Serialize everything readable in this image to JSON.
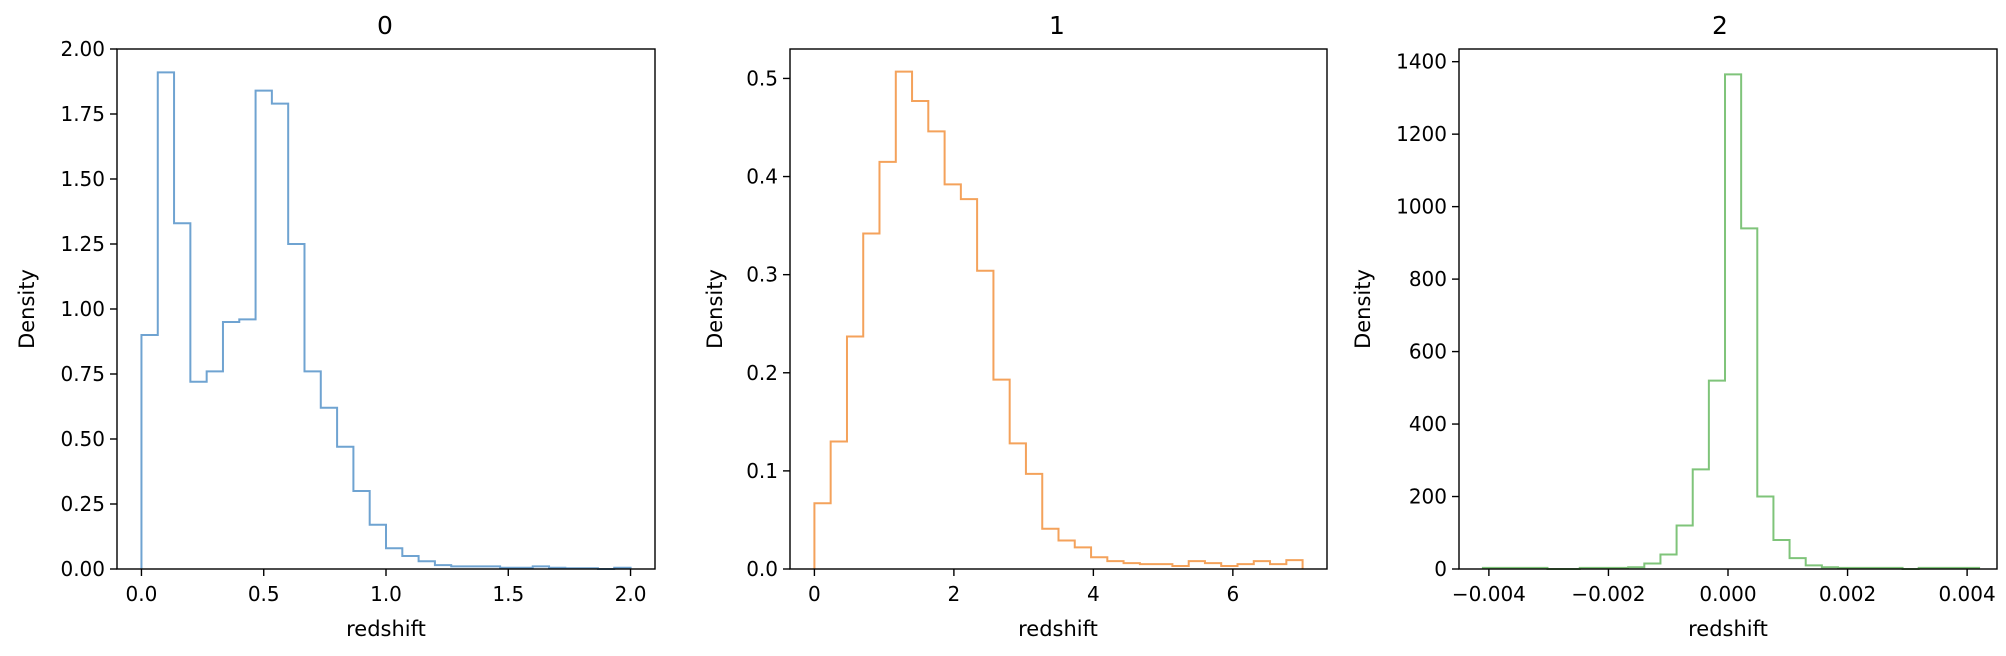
{
  "chart_data": [
    {
      "type": "histogram",
      "histtype": "step",
      "title": "0",
      "xlabel": "redshift",
      "ylabel": "Density",
      "color": "#6fa3d1",
      "xlim": [
        -0.1,
        2.1
      ],
      "ylim": [
        0,
        2.0
      ],
      "xticks": [
        0.0,
        0.5,
        1.0,
        1.5,
        2.0
      ],
      "xtick_labels": [
        "0.0",
        "0.5",
        "1.0",
        "1.5",
        "2.0"
      ],
      "yticks": [
        0.0,
        0.25,
        0.5,
        0.75,
        1.0,
        1.25,
        1.5,
        1.75,
        2.0
      ],
      "ytick_labels": [
        "0.00",
        "0.25",
        "0.50",
        "0.75",
        "1.00",
        "1.25",
        "1.50",
        "1.75",
        "2.00"
      ],
      "bin_edges": [
        0.0,
        0.0667,
        0.1333,
        0.2,
        0.2667,
        0.3333,
        0.4,
        0.4667,
        0.5333,
        0.6,
        0.6667,
        0.7333,
        0.8,
        0.8667,
        0.9333,
        1.0,
        1.0667,
        1.1333,
        1.2,
        1.2667,
        1.3333,
        1.4,
        1.4667,
        1.5333,
        1.6,
        1.6667,
        1.7333,
        1.8,
        1.8667,
        1.9333,
        2.0
      ],
      "values": [
        0.9,
        1.91,
        1.33,
        0.72,
        0.76,
        0.95,
        0.96,
        1.84,
        1.79,
        1.25,
        0.76,
        0.62,
        0.47,
        0.3,
        0.17,
        0.08,
        0.05,
        0.03,
        0.015,
        0.01,
        0.01,
        0.01,
        0.005,
        0.005,
        0.01,
        0.005,
        0.003,
        0.003,
        0.0,
        0.005
      ]
    },
    {
      "type": "histogram",
      "histtype": "step",
      "title": "1",
      "xlabel": "redshift",
      "ylabel": "Density",
      "color": "#f4a25b",
      "xlim": [
        -0.35,
        7.35
      ],
      "ylim": [
        0,
        0.53
      ],
      "xticks": [
        0,
        2,
        4,
        6
      ],
      "xtick_labels": [
        "0",
        "2",
        "4",
        "6"
      ],
      "yticks": [
        0.0,
        0.1,
        0.2,
        0.3,
        0.4,
        0.5
      ],
      "ytick_labels": [
        "0.0",
        "0.1",
        "0.2",
        "0.3",
        "0.4",
        "0.5"
      ],
      "bin_edges": [
        0.0,
        0.233,
        0.467,
        0.7,
        0.933,
        1.167,
        1.4,
        1.633,
        1.867,
        2.1,
        2.333,
        2.567,
        2.8,
        3.033,
        3.267,
        3.5,
        3.733,
        3.967,
        4.2,
        4.433,
        4.667,
        4.9,
        5.133,
        5.367,
        5.6,
        5.833,
        6.067,
        6.3,
        6.533,
        6.767,
        7.0
      ],
      "values": [
        0.067,
        0.13,
        0.237,
        0.342,
        0.415,
        0.507,
        0.477,
        0.446,
        0.392,
        0.377,
        0.304,
        0.193,
        0.128,
        0.097,
        0.041,
        0.029,
        0.022,
        0.012,
        0.008,
        0.006,
        0.005,
        0.005,
        0.003,
        0.008,
        0.006,
        0.003,
        0.005,
        0.008,
        0.005,
        0.009
      ]
    },
    {
      "type": "histogram",
      "histtype": "step",
      "title": "2",
      "xlabel": "redshift",
      "ylabel": "Density",
      "color": "#7fc47a",
      "xlim": [
        -0.0045,
        0.0045
      ],
      "ylim": [
        0,
        1435
      ],
      "xticks": [
        -0.004,
        -0.002,
        0.0,
        0.002,
        0.004
      ],
      "xtick_labels": [
        "−0.004",
        "−0.002",
        "0.000",
        "0.002",
        "0.004"
      ],
      "yticks": [
        0,
        200,
        400,
        600,
        800,
        1000,
        1200,
        1400
      ],
      "ytick_labels": [
        "0",
        "200",
        "400",
        "600",
        "800",
        "1000",
        "1200",
        "1400"
      ],
      "bin_edges": [
        -0.0041,
        -0.00383,
        -0.00356,
        -0.00329,
        -0.00302,
        -0.00275,
        -0.00248,
        -0.00221,
        -0.00194,
        -0.00167,
        -0.0014,
        -0.00113,
        -0.00086,
        -0.00059,
        -0.00032,
        -5e-05,
        0.00022,
        0.00049,
        0.00076,
        0.00103,
        0.0013,
        0.00157,
        0.00184,
        0.00211,
        0.00238,
        0.00265,
        0.00292,
        0.00319,
        0.00346,
        0.00373,
        0.0042
      ],
      "values": [
        3,
        3,
        3,
        3,
        0,
        0,
        3,
        3,
        3,
        5,
        15,
        40,
        120,
        275,
        520,
        1365,
        940,
        200,
        80,
        30,
        10,
        5,
        3,
        3,
        3,
        3,
        0,
        3,
        3,
        3
      ]
    }
  ]
}
